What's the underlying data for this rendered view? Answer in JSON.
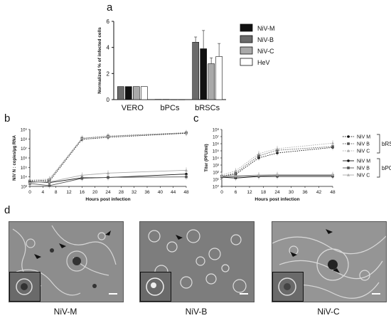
{
  "panels": {
    "a": "a",
    "b": "b",
    "c": "c",
    "d": "d"
  },
  "chart_data": [
    {
      "id": "a",
      "type": "bar",
      "ylabel": "Normalized % of infected cells",
      "ylim": [
        0,
        6
      ],
      "yticks": [
        0,
        2,
        4,
        6
      ],
      "categories": [
        "VERO",
        "bPCs",
        "bRSCs"
      ],
      "series": [
        {
          "name": "NiV-M",
          "color": "#111111",
          "values": [
            1,
            0.02,
            3.9
          ],
          "err": [
            0,
            0,
            1.4
          ]
        },
        {
          "name": "NiV-B",
          "color": "#6b6b6b",
          "values": [
            1,
            0.02,
            4.4
          ],
          "err": [
            0,
            0,
            0.4
          ]
        },
        {
          "name": "NiV-C",
          "color": "#a9a9a9",
          "values": [
            1,
            0.01,
            2.75
          ],
          "err": [
            0,
            0,
            0.45
          ]
        },
        {
          "name": "HeV",
          "color": "#ffffff",
          "values": [
            1,
            0.01,
            3.3
          ],
          "err": [
            0,
            0,
            1.0
          ]
        }
      ],
      "legend_position": "right"
    },
    {
      "id": "b",
      "type": "line",
      "xlabel": "Hours post infection",
      "ylabel": "NiV N : copies/µg RNA",
      "xticks": [
        0,
        4,
        8,
        12,
        16,
        20,
        24,
        28,
        32,
        36,
        40,
        44,
        48
      ],
      "log_y": true,
      "ylim_exp": [
        3,
        9
      ],
      "ytick_labels": [
        "10³",
        "10⁴",
        "10⁵",
        "10⁶",
        "10⁷",
        "10⁸",
        "10⁹"
      ],
      "x": [
        0,
        6,
        16,
        24,
        48
      ],
      "series": [
        {
          "group": "bRSCs",
          "strain": "M",
          "style": "dotted",
          "marker": "circle",
          "values": [
            4000,
            3500,
            90000000,
            150000000,
            400000000
          ]
        },
        {
          "group": "bRSCs",
          "strain": "B",
          "style": "dotted",
          "marker": "square",
          "values": [
            3500,
            5000,
            120000000,
            200000000,
            450000000
          ]
        },
        {
          "group": "bRSCs",
          "strain": "C",
          "style": "dotted",
          "marker": "triangle",
          "values": [
            4500,
            6000,
            110000000,
            180000000,
            420000000
          ]
        },
        {
          "group": "bPCs",
          "strain": "M",
          "style": "solid",
          "marker": "circle",
          "values": [
            3000,
            2500,
            8000,
            8500,
            20000
          ]
        },
        {
          "group": "bPCs",
          "strain": "B",
          "style": "solid",
          "marker": "square",
          "values": [
            2000,
            1200,
            7000,
            9000,
            10000
          ]
        },
        {
          "group": "bPCs",
          "strain": "C",
          "style": "solid",
          "marker": "triangle",
          "values": [
            2500,
            3000,
            15000,
            25000,
            50000
          ]
        }
      ]
    },
    {
      "id": "c",
      "type": "line",
      "xlabel": "Hours post infection",
      "ylabel": "Titer (PFU/ml)",
      "xticks": [
        0,
        6,
        12,
        18,
        24,
        30,
        36,
        42,
        48
      ],
      "log_y": true,
      "ylim_exp": [
        0,
        8
      ],
      "ytick_labels": [
        "10⁰",
        "10¹",
        "10²",
        "10³",
        "10⁴",
        "10⁵",
        "10⁶",
        "10⁷",
        "10⁸"
      ],
      "x": [
        0,
        6,
        16,
        24,
        48
      ],
      "series": [
        {
          "group": "bRSCs",
          "strain": "M",
          "style": "dotted",
          "marker": "circle",
          "values": [
            30,
            50,
            10000,
            50000,
            300000
          ]
        },
        {
          "group": "bRSCs",
          "strain": "B",
          "style": "dotted",
          "marker": "square",
          "values": [
            25,
            80,
            20000,
            120000,
            400000
          ]
        },
        {
          "group": "bRSCs",
          "strain": "C",
          "style": "dotted",
          "marker": "triangle",
          "values": [
            40,
            150,
            40000,
            200000,
            1200000
          ]
        },
        {
          "group": "bPCs",
          "strain": "M",
          "style": "solid",
          "marker": "circle",
          "values": [
            20,
            15,
            25,
            25,
            25
          ]
        },
        {
          "group": "bPCs",
          "strain": "B",
          "style": "solid",
          "marker": "square",
          "values": [
            25,
            25,
            30,
            35,
            35
          ]
        },
        {
          "group": "bPCs",
          "strain": "C",
          "style": "solid",
          "marker": "triangle",
          "values": [
            30,
            30,
            40,
            45,
            45
          ]
        }
      ],
      "legend": {
        "entries": [
          "NiV M",
          "NiV B",
          "NiV C",
          "NiV M",
          "NiV B",
          "NiV C"
        ],
        "group_labels": [
          "bRSCs",
          "bPCs"
        ],
        "position": "right"
      }
    }
  ],
  "micrographs": [
    {
      "label": "NiV-M"
    },
    {
      "label": "NiV-B"
    },
    {
      "label": "NiV-C"
    }
  ]
}
